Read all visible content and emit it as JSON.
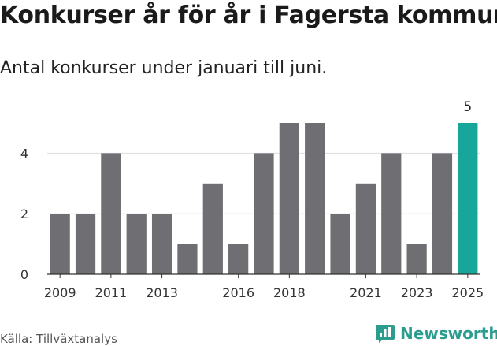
{
  "title": "Konkurser år för år i Fagersta kommun",
  "subtitle": "Antal konkurser under januari till juni.",
  "source": "Källa: Tillväxtanalys",
  "brand": "Newsworthy",
  "colors": {
    "bar": "#6f6e72",
    "highlight": "#17a69a",
    "grid": "#dddddd",
    "axis": "#333333",
    "brand": "#2a9d8f"
  },
  "chart_data": {
    "type": "bar",
    "categories": [
      "2009",
      "2010",
      "2011",
      "2012",
      "2013",
      "2014",
      "2015",
      "2016",
      "2017",
      "2018",
      "2019",
      "2020",
      "2021",
      "2022",
      "2023",
      "2024",
      "2025"
    ],
    "values": [
      2,
      2,
      4,
      2,
      2,
      1,
      3,
      1,
      4,
      5,
      5,
      2,
      3,
      4,
      1,
      4,
      5
    ],
    "x_tick_labels": [
      "2009",
      "2011",
      "2013",
      "2016",
      "2018",
      "2021",
      "2023",
      "2025"
    ],
    "y_ticks": [
      0,
      2,
      4
    ],
    "ylim": [
      0,
      5
    ],
    "highlight_category": "2025",
    "data_labels": [
      {
        "category": "2025",
        "value": "5"
      }
    ],
    "grid": true,
    "legend": "none"
  }
}
